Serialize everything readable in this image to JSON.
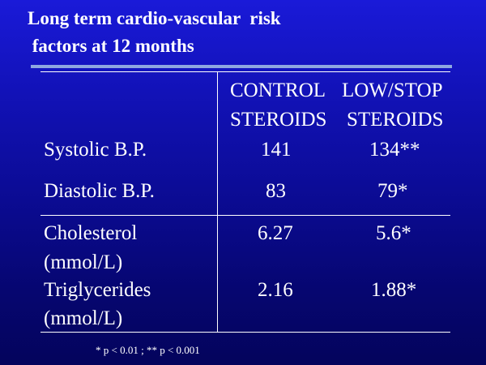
{
  "slide": {
    "title_line1": "Long term cardio-vascular  risk",
    "title_line2": " factors at 12 months"
  },
  "table": {
    "columns": [
      {
        "line1": "CONTROL",
        "line2": "STEROIDS"
      },
      {
        "line1": "LOW/STOP",
        "line2": "STEROIDS"
      }
    ],
    "rows": [
      {
        "label": [
          "Systolic B.P."
        ],
        "control": "141",
        "low_stop": "134**"
      },
      {
        "label": [
          "Diastolic B.P."
        ],
        "control": "83",
        "low_stop": "79*"
      },
      {
        "label": [
          "Cholesterol",
          "(mmol/L)"
        ],
        "control": "6.27",
        "low_stop": "5.6*"
      },
      {
        "label": [
          "Triglycerides",
          "(mmol/L)"
        ],
        "control": "2.16",
        "low_stop": "1.88*"
      }
    ]
  },
  "footnote": "* p < 0.01 ; ** p < 0.001",
  "colors": {
    "background_top": "#1a1ad8",
    "background_bottom": "#04045c",
    "rule": "#8ea8e0",
    "text": "#ffffff"
  }
}
